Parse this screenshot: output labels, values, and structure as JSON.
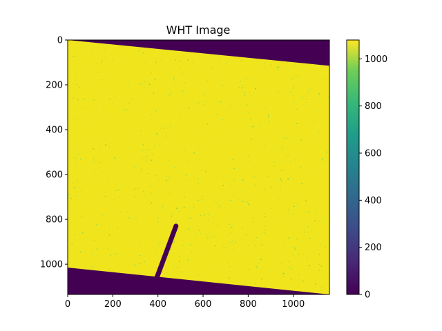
{
  "chart_data": {
    "type": "heatmap",
    "title": "WHT Image",
    "xlabel": "",
    "ylabel": "",
    "image_extent": {
      "x": [
        0,
        1160
      ],
      "y": [
        0,
        1135
      ]
    },
    "xlim": [
      0,
      1160
    ],
    "ylim": [
      1135,
      0
    ],
    "x_ticks": [
      0,
      200,
      400,
      600,
      800,
      1000
    ],
    "y_ticks": [
      0,
      200,
      400,
      600,
      800,
      1000
    ],
    "colorbar": {
      "range": [
        0,
        1080
      ],
      "ticks": [
        0,
        200,
        400,
        600,
        800,
        1000
      ],
      "colormap": "viridis"
    },
    "background_value": 0,
    "frame_value": 1080,
    "frame_polygon": [
      [
        0,
        0
      ],
      [
        1160,
        115
      ],
      [
        1160,
        1135
      ],
      [
        0,
        1015
      ]
    ],
    "trail": {
      "from": [
        480,
        830
      ],
      "to": [
        395,
        1060
      ],
      "value": 0
    },
    "grid": false,
    "colors": {
      "frame": "#f0e51d",
      "background": "#440154",
      "speckle": "#6ccd5a"
    }
  }
}
